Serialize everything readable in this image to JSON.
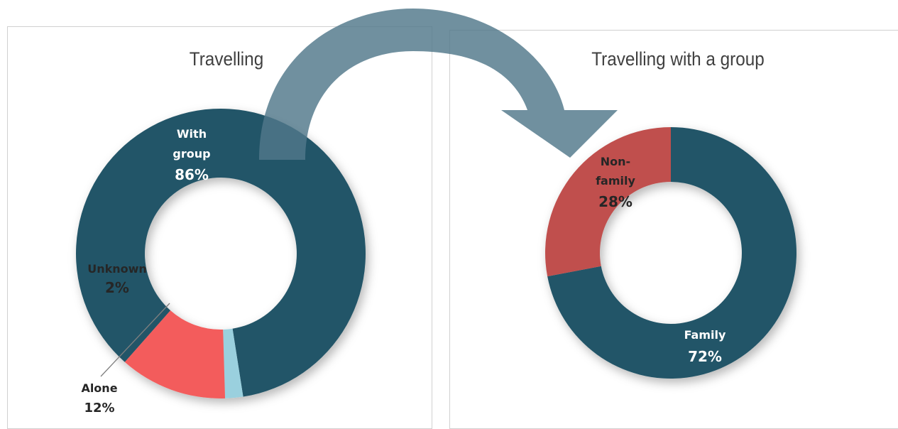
{
  "chart_data": [
    {
      "type": "pie",
      "title": "Travelling",
      "slices": [
        {
          "label": "With group",
          "display_label": [
            "With",
            "group"
          ],
          "value": 86,
          "value_label": "86%",
          "color": "#245567",
          "label_color": "#ffffff"
        },
        {
          "label": "Unknown",
          "display_label": [
            "Unknown"
          ],
          "value": 2,
          "value_label": "2%",
          "color": "#9ad0de",
          "label_color": "#262626"
        },
        {
          "label": "Alone",
          "display_label": [
            "Alone"
          ],
          "value": 12,
          "value_label": "12%",
          "color": "#f35c5c",
          "label_color": "#262626"
        }
      ]
    },
    {
      "type": "pie",
      "title": "Travelling with a group",
      "slices": [
        {
          "label": "Family",
          "display_label": [
            "Family"
          ],
          "value": 72,
          "value_label": "72%",
          "color": "#245567",
          "label_color": "#ffffff"
        },
        {
          "label": "Non-family",
          "display_label": [
            "Non-",
            "family"
          ],
          "value": 28,
          "value_label": "28%",
          "color": "#c0504d",
          "label_color": "#262626"
        }
      ]
    }
  ],
  "colors": {
    "arrow": "#50788a",
    "title": "#404040"
  },
  "icons": {
    "arrow": "curved-arrow-icon"
  }
}
